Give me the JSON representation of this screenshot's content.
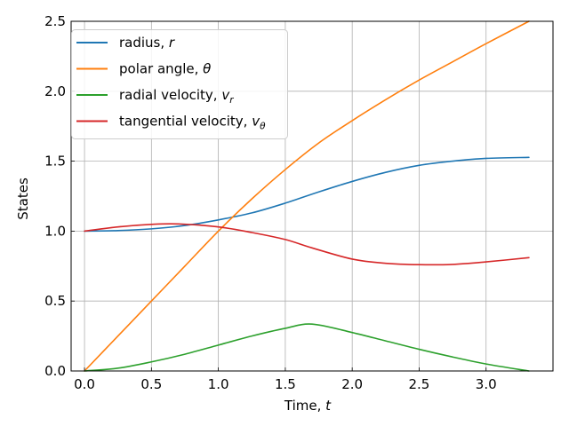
{
  "chart_data": {
    "type": "line",
    "xlabel": "Time, ",
    "xlabel_var": "t",
    "ylabel": "States",
    "xlim": [
      -0.1,
      3.5
    ],
    "ylim": [
      0.0,
      2.5
    ],
    "xticks": [
      0.0,
      0.5,
      1.0,
      1.5,
      2.0,
      2.5,
      3.0
    ],
    "xtick_labels": [
      "0.0",
      "0.5",
      "1.0",
      "1.5",
      "2.0",
      "2.5",
      "3.0"
    ],
    "yticks": [
      0.0,
      0.5,
      1.0,
      1.5,
      2.0,
      2.5
    ],
    "ytick_labels": [
      "0.0",
      "0.5",
      "1.0",
      "1.5",
      "2.0",
      "2.5"
    ],
    "grid": true,
    "legend_position": "top-left",
    "series": [
      {
        "name": "radius, ",
        "name_var": "r",
        "color": "#1f77b4",
        "x": [
          0.0,
          0.25,
          0.5,
          0.75,
          1.0,
          1.25,
          1.5,
          1.75,
          2.0,
          2.25,
          2.5,
          2.75,
          3.0,
          3.32
        ],
        "y": [
          1.0,
          1.004,
          1.016,
          1.04,
          1.08,
          1.13,
          1.2,
          1.28,
          1.355,
          1.42,
          1.47,
          1.5,
          1.52,
          1.527
        ]
      },
      {
        "name": "polar angle, ",
        "name_var": "θ",
        "color": "#ff7f0e",
        "x": [
          0.0,
          0.25,
          0.5,
          0.75,
          1.0,
          1.25,
          1.5,
          1.75,
          2.0,
          2.25,
          2.5,
          2.75,
          3.0,
          3.32
        ],
        "y": [
          0.0,
          0.25,
          0.5,
          0.75,
          1.0,
          1.23,
          1.44,
          1.63,
          1.79,
          1.94,
          2.08,
          2.21,
          2.34,
          2.5
        ]
      },
      {
        "name": "radial velocity, ",
        "name_var": "v",
        "name_sub": "r",
        "color": "#2ca02c",
        "x": [
          0.0,
          0.25,
          0.5,
          0.75,
          1.0,
          1.25,
          1.5,
          1.7,
          2.0,
          2.25,
          2.5,
          2.75,
          3.0,
          3.32
        ],
        "y": [
          0.0,
          0.02,
          0.065,
          0.12,
          0.185,
          0.25,
          0.305,
          0.335,
          0.275,
          0.215,
          0.155,
          0.1,
          0.05,
          0.0
        ]
      },
      {
        "name": "tangential velocity, ",
        "name_var": "v",
        "name_sub": "θ",
        "color": "#d62728",
        "x": [
          0.0,
          0.25,
          0.5,
          0.7,
          1.0,
          1.25,
          1.5,
          1.7,
          2.0,
          2.25,
          2.5,
          2.75,
          3.0,
          3.32
        ],
        "y": [
          1.0,
          1.03,
          1.048,
          1.051,
          1.03,
          0.99,
          0.94,
          0.88,
          0.8,
          0.77,
          0.76,
          0.762,
          0.78,
          0.81
        ]
      }
    ]
  }
}
